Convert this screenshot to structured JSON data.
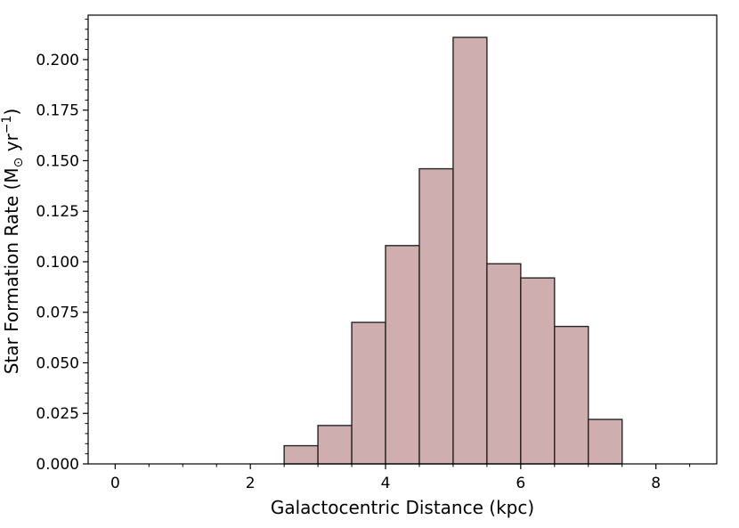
{
  "chart_data": {
    "type": "bar",
    "xlabel": "Galactocentric Distance (kpc)",
    "ylabel_parts": {
      "main": "Star Formation Rate (M",
      "sun_subscript": "⊙",
      "unit": " yr",
      "exponent": "−1",
      "close": ")"
    },
    "bin_width": 0.5,
    "bins": [
      {
        "x_start": 2.5,
        "value": 0.009
      },
      {
        "x_start": 3.0,
        "value": 0.019
      },
      {
        "x_start": 3.5,
        "value": 0.07
      },
      {
        "x_start": 4.0,
        "value": 0.108
      },
      {
        "x_start": 4.5,
        "value": 0.146
      },
      {
        "x_start": 5.0,
        "value": 0.211
      },
      {
        "x_start": 5.5,
        "value": 0.099
      },
      {
        "x_start": 6.0,
        "value": 0.092
      },
      {
        "x_start": 6.5,
        "value": 0.068
      },
      {
        "x_start": 7.0,
        "value": 0.022
      }
    ],
    "xlim": [
      -0.4,
      8.9
    ],
    "ylim": [
      0.0,
      0.222
    ],
    "x_ticks": [
      0,
      2,
      4,
      6,
      8
    ],
    "x_tick_labels": [
      "0",
      "2",
      "4",
      "6",
      "8"
    ],
    "y_ticks": [
      0.0,
      0.025,
      0.05,
      0.075,
      0.1,
      0.125,
      0.15,
      0.175,
      0.2
    ],
    "y_tick_labels": [
      "0.000",
      "0.025",
      "0.050",
      "0.075",
      "0.100",
      "0.125",
      "0.150",
      "0.175",
      "0.200"
    ],
    "x_minor_step": 0.5,
    "y_minor_step": 0.005,
    "grid": false,
    "bar_fill": "#cfaeaf",
    "bar_edge": "#2b2323"
  }
}
